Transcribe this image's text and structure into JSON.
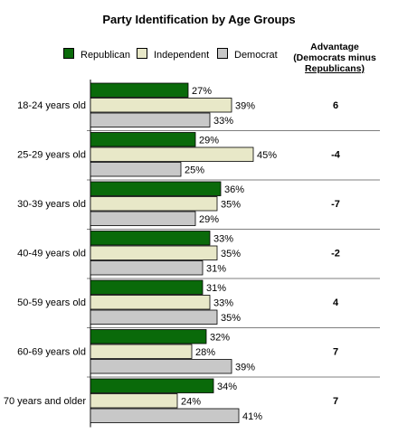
{
  "chart_data": {
    "type": "bar",
    "orientation": "horizontal",
    "title": "Party Identification by Age Groups",
    "categories": [
      "18-24 years old",
      "25-29 years old",
      "30-39 years old",
      "40-49 years old",
      "50-59 years old",
      "60-69 years old",
      "70 years and older"
    ],
    "series": [
      {
        "name": "Republican",
        "color": "#0a6a0a",
        "values": [
          27,
          29,
          36,
          33,
          31,
          32,
          34
        ]
      },
      {
        "name": "Independent",
        "color": "#e8e8c8",
        "values": [
          39,
          45,
          35,
          35,
          33,
          28,
          24
        ]
      },
      {
        "name": "Democrat",
        "color": "#c8c8c8",
        "values": [
          33,
          25,
          29,
          31,
          35,
          39,
          41
        ]
      }
    ],
    "value_suffix": "%",
    "advantage": {
      "header": [
        "Advantage",
        "(Democrats minus",
        "Republicans)"
      ],
      "values": [
        "6",
        "-4",
        "-7",
        "-2",
        "4",
        "7",
        "7"
      ]
    },
    "grid": false,
    "legend_position": "top"
  }
}
